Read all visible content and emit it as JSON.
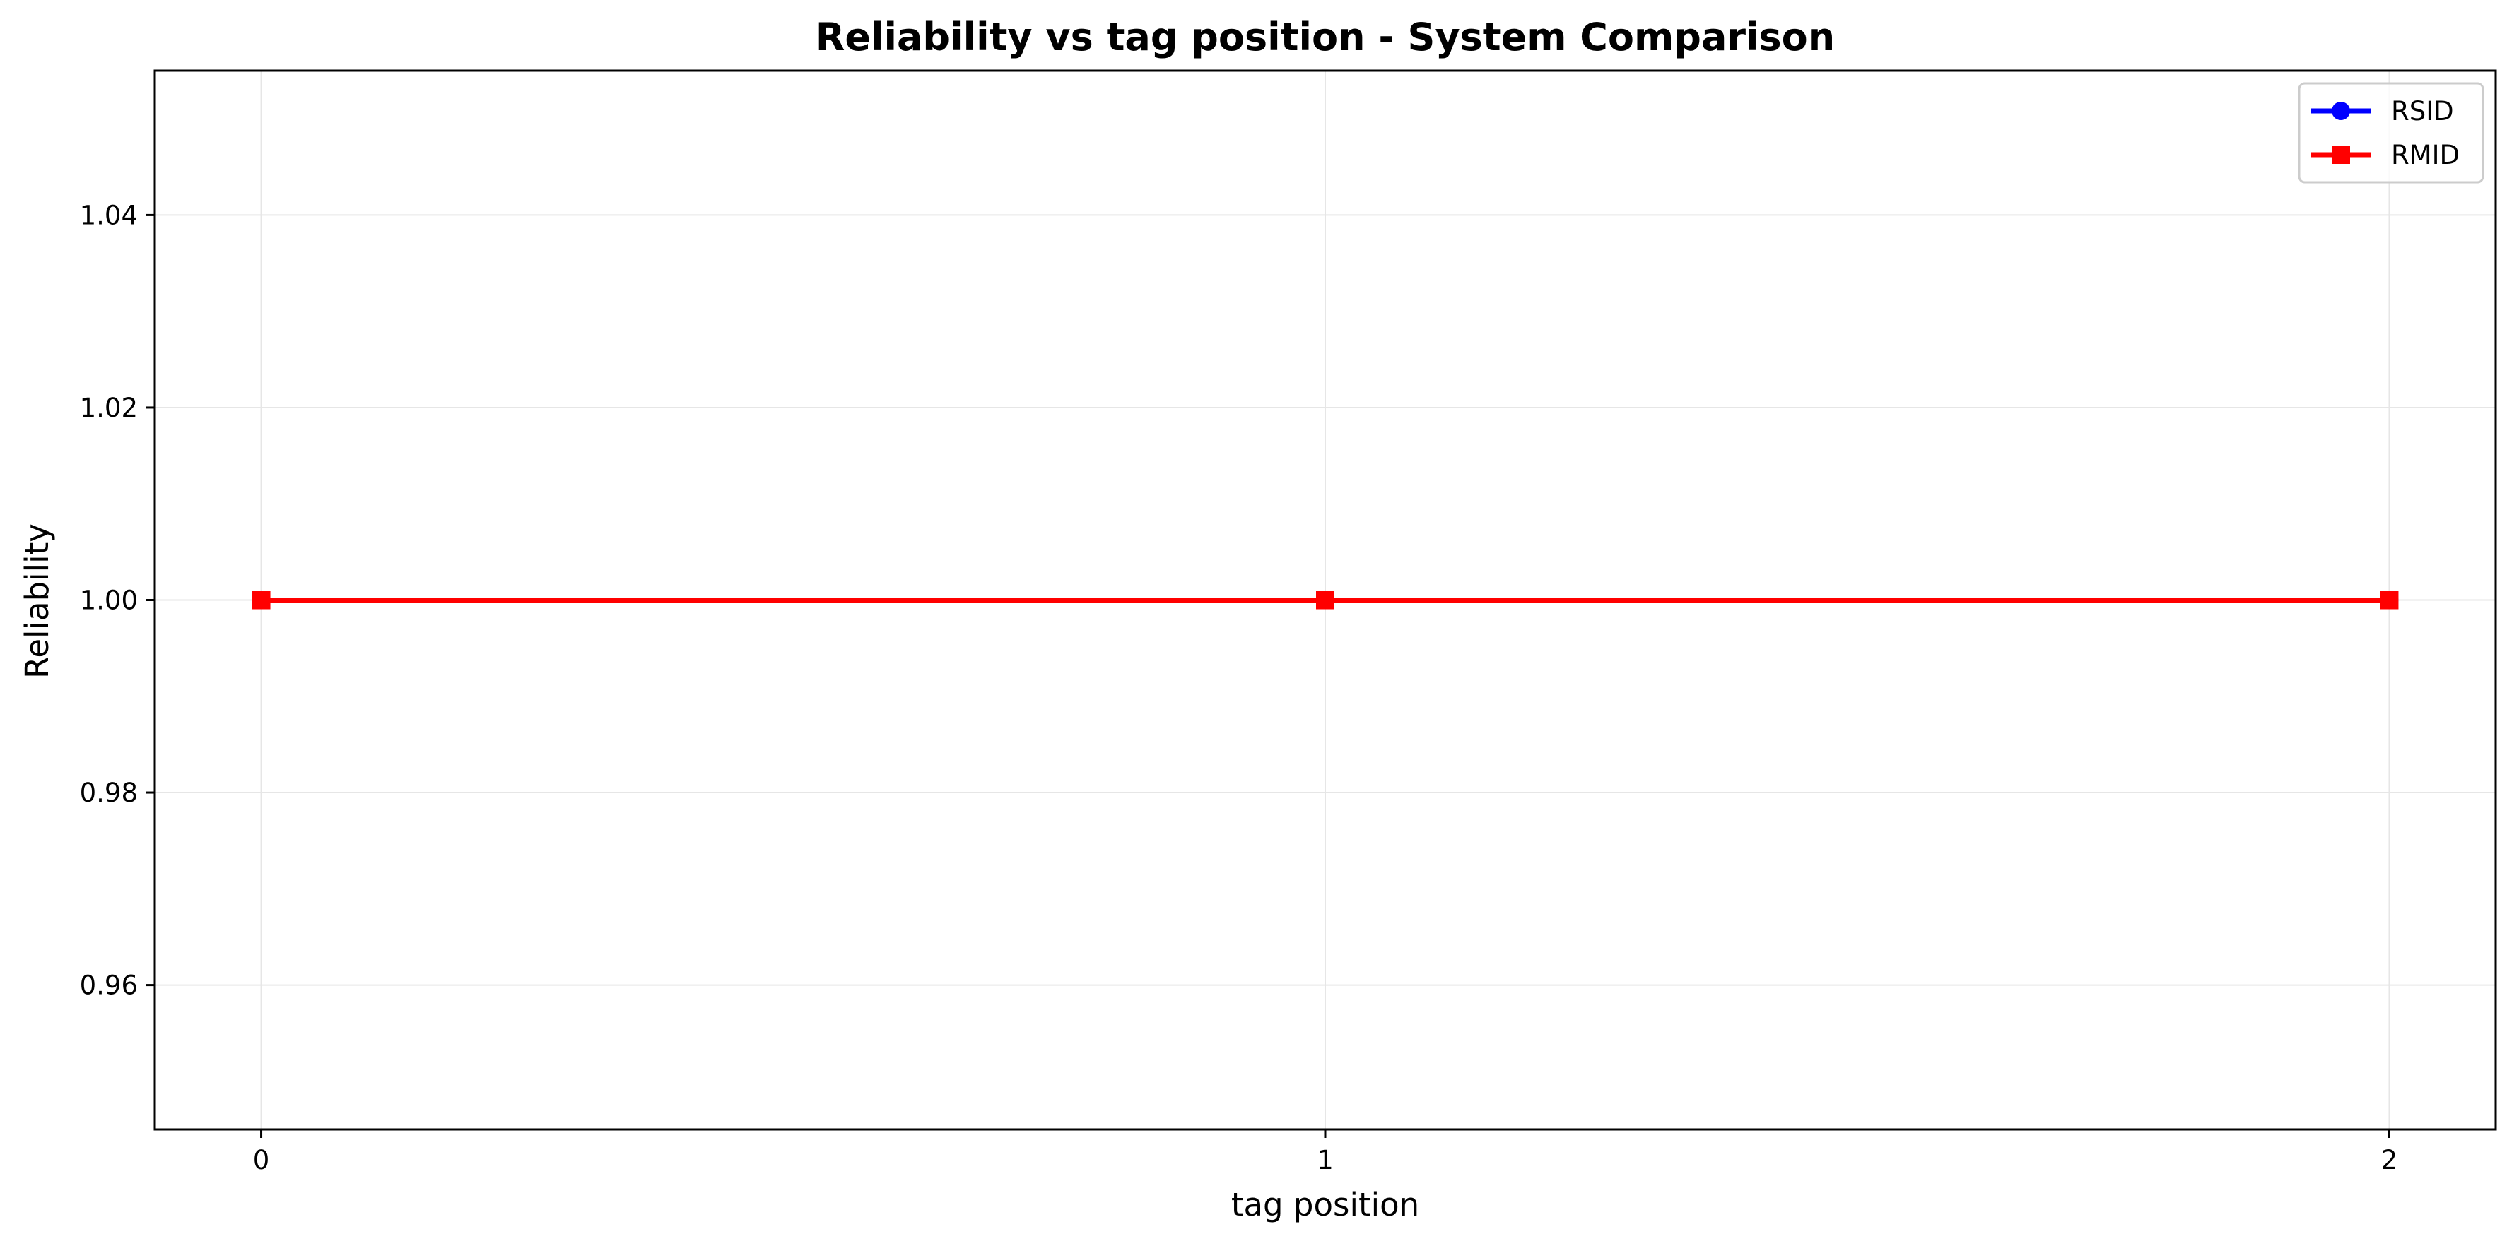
{
  "chart_data": {
    "type": "line",
    "title": "Reliability vs tag position - System Comparison",
    "xlabel": "tag position",
    "ylabel": "Reliability",
    "x": [
      0,
      1,
      2
    ],
    "xticks": [
      0,
      1,
      2
    ],
    "yticks": [
      0.96,
      0.98,
      1.0,
      1.02,
      1.04
    ],
    "ytick_labels": [
      "0.96",
      "0.98",
      "1.00",
      "1.02",
      "1.04"
    ],
    "xlim": [
      -0.1,
      2.1
    ],
    "ylim": [
      0.945,
      1.055
    ],
    "grid": true,
    "legend_position": "top-right",
    "series": [
      {
        "name": "RSID",
        "values": [
          1.0,
          1.0,
          1.0
        ],
        "color": "#0000ff",
        "marker": "circle"
      },
      {
        "name": "RMID",
        "values": [
          1.0,
          1.0,
          1.0
        ],
        "color": "#ff0000",
        "marker": "square"
      }
    ]
  }
}
